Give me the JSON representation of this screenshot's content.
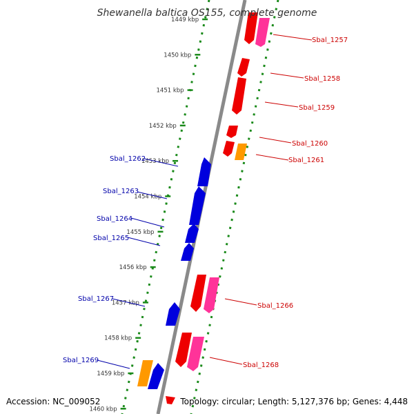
{
  "title": "Shewanella baltica OS155, complete genome",
  "footer": {
    "accession": "Accession: NC_009052",
    "summary": "Topology: circular; Length: 5,127,376 bp; Genes: 4,448"
  },
  "colors": {
    "backbone": "#8a8a8a",
    "tick_dots": "#1a8a1a",
    "forward_gene": "#ee0000",
    "forward_gene_alt": "#ff3399",
    "reverse_gene": "#0000dd",
    "other_feature": "#ff9900",
    "forward_label": "#cc0000",
    "reverse_label": "#0000aa"
  },
  "ticks": [
    {
      "label": "1449 kbp"
    },
    {
      "label": "1450 kbp"
    },
    {
      "label": "1451 kbp"
    },
    {
      "label": "1452 kbp"
    },
    {
      "label": "1453 kbp"
    },
    {
      "label": "1454 kbp"
    },
    {
      "label": "1455 kbp"
    },
    {
      "label": "1456 kbp"
    },
    {
      "label": "1457 kbp"
    },
    {
      "label": "1458 kbp"
    },
    {
      "label": "1459 kbp"
    },
    {
      "label": "1460 kbp"
    }
  ],
  "forward_labels": [
    "Sbal_1257",
    "Sbal_1258",
    "Sbal_1259",
    "Sbal_1260",
    "Sbal_1261",
    "Sbal_1266",
    "Sbal_1268"
  ],
  "reverse_labels": [
    "Sbal_1262",
    "Sbal_1263",
    "Sbal_1264",
    "Sbal_1265",
    "Sbal_1267",
    "Sbal_1269"
  ]
}
